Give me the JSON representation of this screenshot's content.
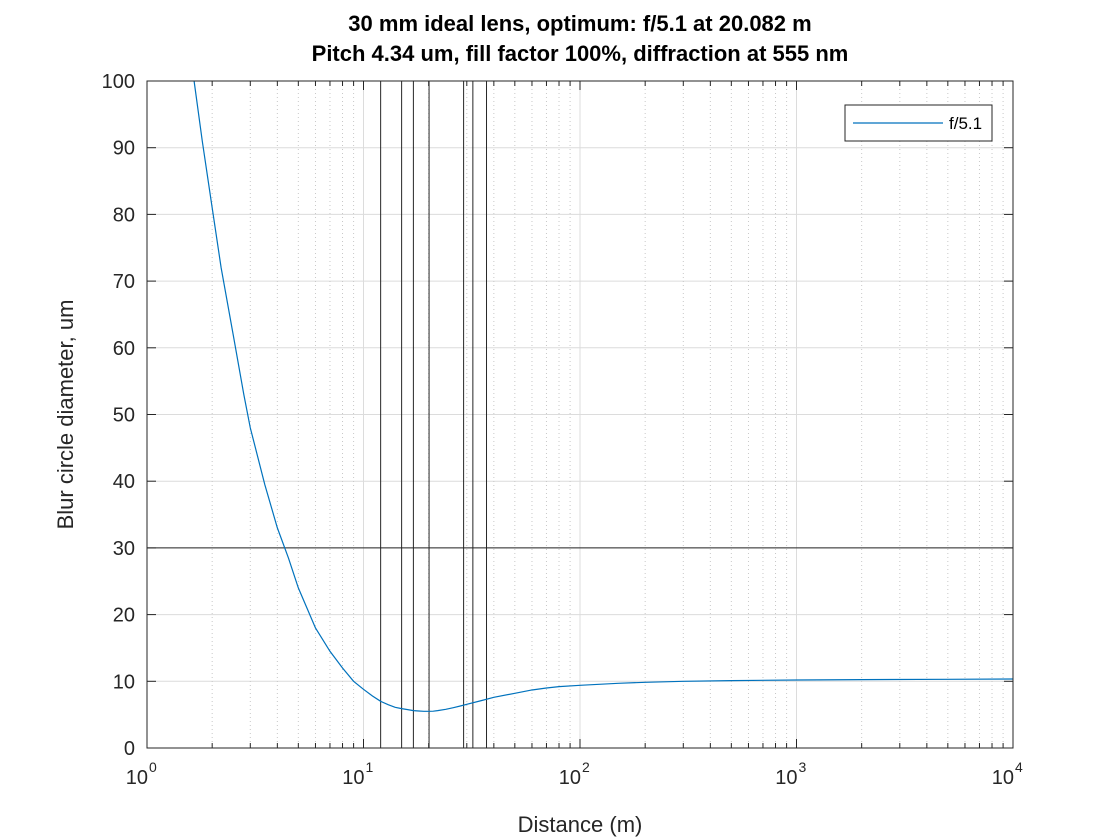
{
  "chart_data": {
    "type": "line",
    "title": [
      "30 mm ideal lens, optimum: f/5.1 at 20.082 m",
      "Pitch 4.34 um, fill factor 100%, diffraction at 555 nm"
    ],
    "xlabel": "Distance (m)",
    "ylabel": "Blur circle diameter, um",
    "xscale": "log",
    "xlim": [
      1,
      10000
    ],
    "ylim": [
      0,
      100
    ],
    "x_ticks": [
      {
        "base": "10",
        "exp": "0",
        "value": 1
      },
      {
        "base": "10",
        "exp": "1",
        "value": 10
      },
      {
        "base": "10",
        "exp": "2",
        "value": 100
      },
      {
        "base": "10",
        "exp": "3",
        "value": 1000
      },
      {
        "base": "10",
        "exp": "4",
        "value": 10000
      }
    ],
    "y_ticks": [
      "0",
      "10",
      "20",
      "30",
      "40",
      "50",
      "60",
      "70",
      "80",
      "90",
      "100"
    ],
    "grid": true,
    "minor_grid_x": true,
    "legend_position": "top-right",
    "series": [
      {
        "name": "f/5.1",
        "color": "#0072BD",
        "x": [
          1.65,
          1.8,
          2.0,
          2.2,
          2.5,
          2.8,
          3.0,
          3.5,
          4.0,
          4.5,
          5.0,
          6.0,
          7.0,
          8.0,
          9.0,
          10.0,
          11.0,
          12.0,
          13.0,
          14.0,
          15.0,
          16.0,
          17.0,
          18.0,
          19.0,
          20.0,
          21.0,
          22.0,
          24.0,
          26.0,
          28.0,
          30.0,
          35.0,
          40.0,
          50.0,
          60.0,
          70.0,
          80.0,
          100.0,
          150.0,
          200.0,
          300.0,
          500.0,
          1000.0,
          2000.0,
          5000.0,
          10000.0
        ],
        "y": [
          100.0,
          91.0,
          81.0,
          72.0,
          62.0,
          53.0,
          48.0,
          39.5,
          33.0,
          28.5,
          24.0,
          18.0,
          14.5,
          12.0,
          10.0,
          8.8,
          7.8,
          7.0,
          6.5,
          6.1,
          5.9,
          5.75,
          5.6,
          5.55,
          5.5,
          5.5,
          5.52,
          5.6,
          5.8,
          6.05,
          6.3,
          6.55,
          7.1,
          7.6,
          8.2,
          8.7,
          9.0,
          9.2,
          9.4,
          9.7,
          9.85,
          10.0,
          10.1,
          10.2,
          10.25,
          10.3,
          10.35
        ]
      }
    ],
    "vertical_lines_x": [
      12,
      15,
      17,
      20.082,
      29,
      32,
      37
    ],
    "horizontal_line_y": 30,
    "reference_line_color": "#262626"
  }
}
